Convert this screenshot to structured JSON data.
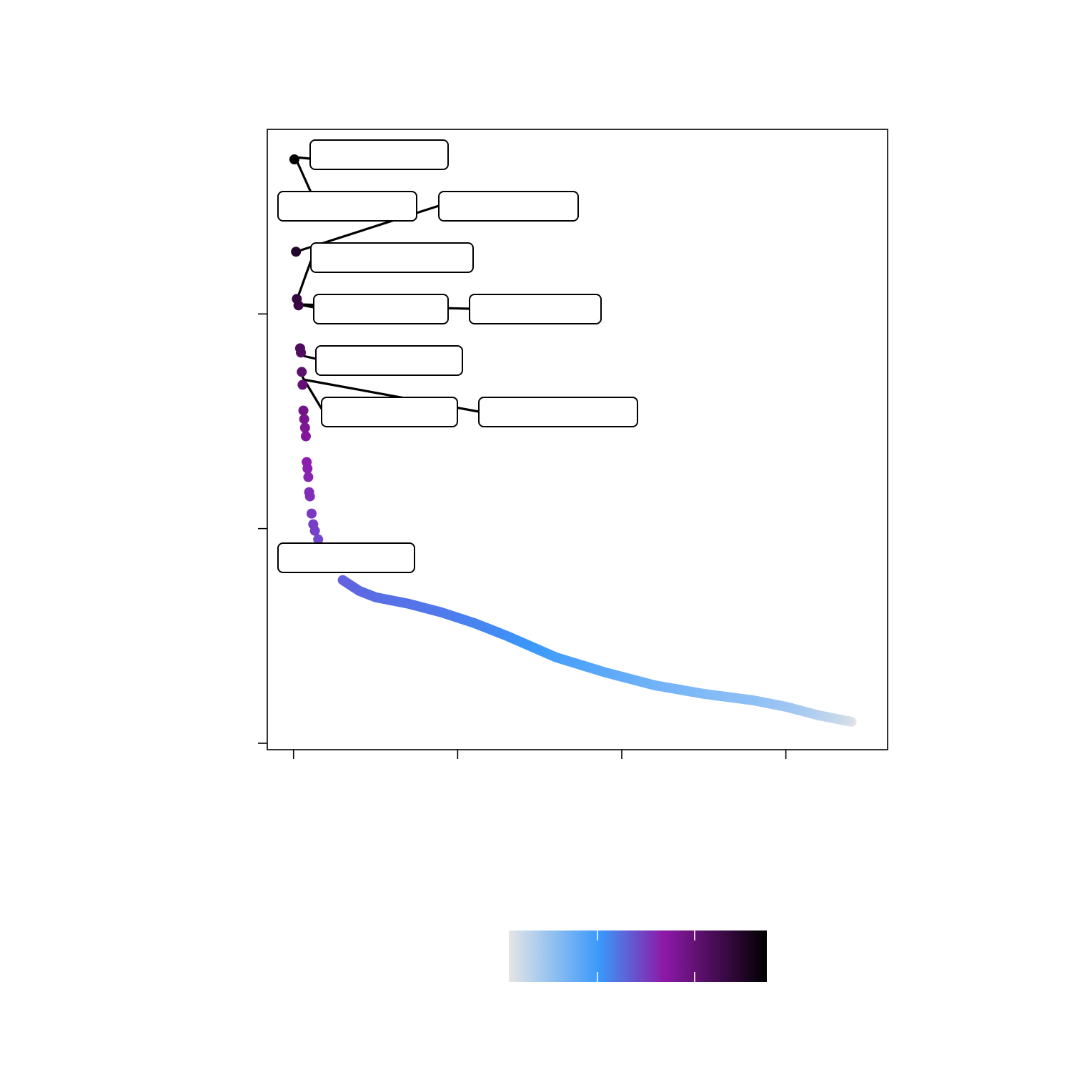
{
  "chart_data": {
    "type": "scatter",
    "title": "",
    "xlabel": "",
    "ylabel": "",
    "x_ticks": [
      0,
      1,
      2,
      3
    ],
    "xlim": [
      -0.16,
      3.62
    ],
    "y_ticks": [
      0,
      1,
      2
    ],
    "ylim": [
      -0.03,
      2.86
    ],
    "grid": false,
    "color_scale": {
      "stops": [
        "#e5e5e5",
        "#8fc0f5",
        "#3a99fb",
        "#6a55d8",
        "#8e19a8",
        "#3d0a4a",
        "#000000"
      ],
      "legend_ticks": 2
    },
    "series": [
      {
        "points": [
          [
            0.005,
            2.72
          ],
          [
            0.015,
            2.29
          ],
          [
            0.02,
            2.07
          ],
          [
            0.03,
            2.04
          ],
          [
            0.04,
            1.84
          ],
          [
            0.045,
            1.82
          ],
          [
            0.05,
            1.73
          ],
          [
            0.055,
            1.67
          ],
          [
            0.06,
            1.55
          ],
          [
            0.065,
            1.51
          ],
          [
            0.07,
            1.47
          ],
          [
            0.075,
            1.43
          ],
          [
            0.08,
            1.31
          ],
          [
            0.085,
            1.28
          ],
          [
            0.09,
            1.24
          ],
          [
            0.095,
            1.17
          ],
          [
            0.1,
            1.15
          ],
          [
            0.11,
            1.07
          ],
          [
            0.12,
            1.02
          ],
          [
            0.13,
            0.99
          ],
          [
            0.15,
            0.95
          ],
          [
            0.18,
            0.89
          ],
          [
            0.22,
            0.82
          ],
          [
            0.3,
            0.76
          ],
          [
            0.4,
            0.71
          ],
          [
            0.5,
            0.68
          ],
          [
            0.7,
            0.65
          ],
          [
            0.9,
            0.61
          ],
          [
            1.1,
            0.56
          ],
          [
            1.3,
            0.5
          ],
          [
            1.6,
            0.4
          ],
          [
            1.9,
            0.33
          ],
          [
            2.2,
            0.27
          ],
          [
            2.5,
            0.23
          ],
          [
            2.8,
            0.2
          ],
          [
            3.0,
            0.17
          ],
          [
            3.2,
            0.13
          ],
          [
            3.4,
            0.1
          ]
        ]
      }
    ],
    "annotations": [
      {
        "text": ""
      },
      {
        "text": ""
      },
      {
        "text": ""
      },
      {
        "text": ""
      },
      {
        "text": ""
      },
      {
        "text": ""
      },
      {
        "text": ""
      },
      {
        "text": ""
      },
      {
        "text": ""
      },
      {
        "text": ""
      }
    ]
  }
}
